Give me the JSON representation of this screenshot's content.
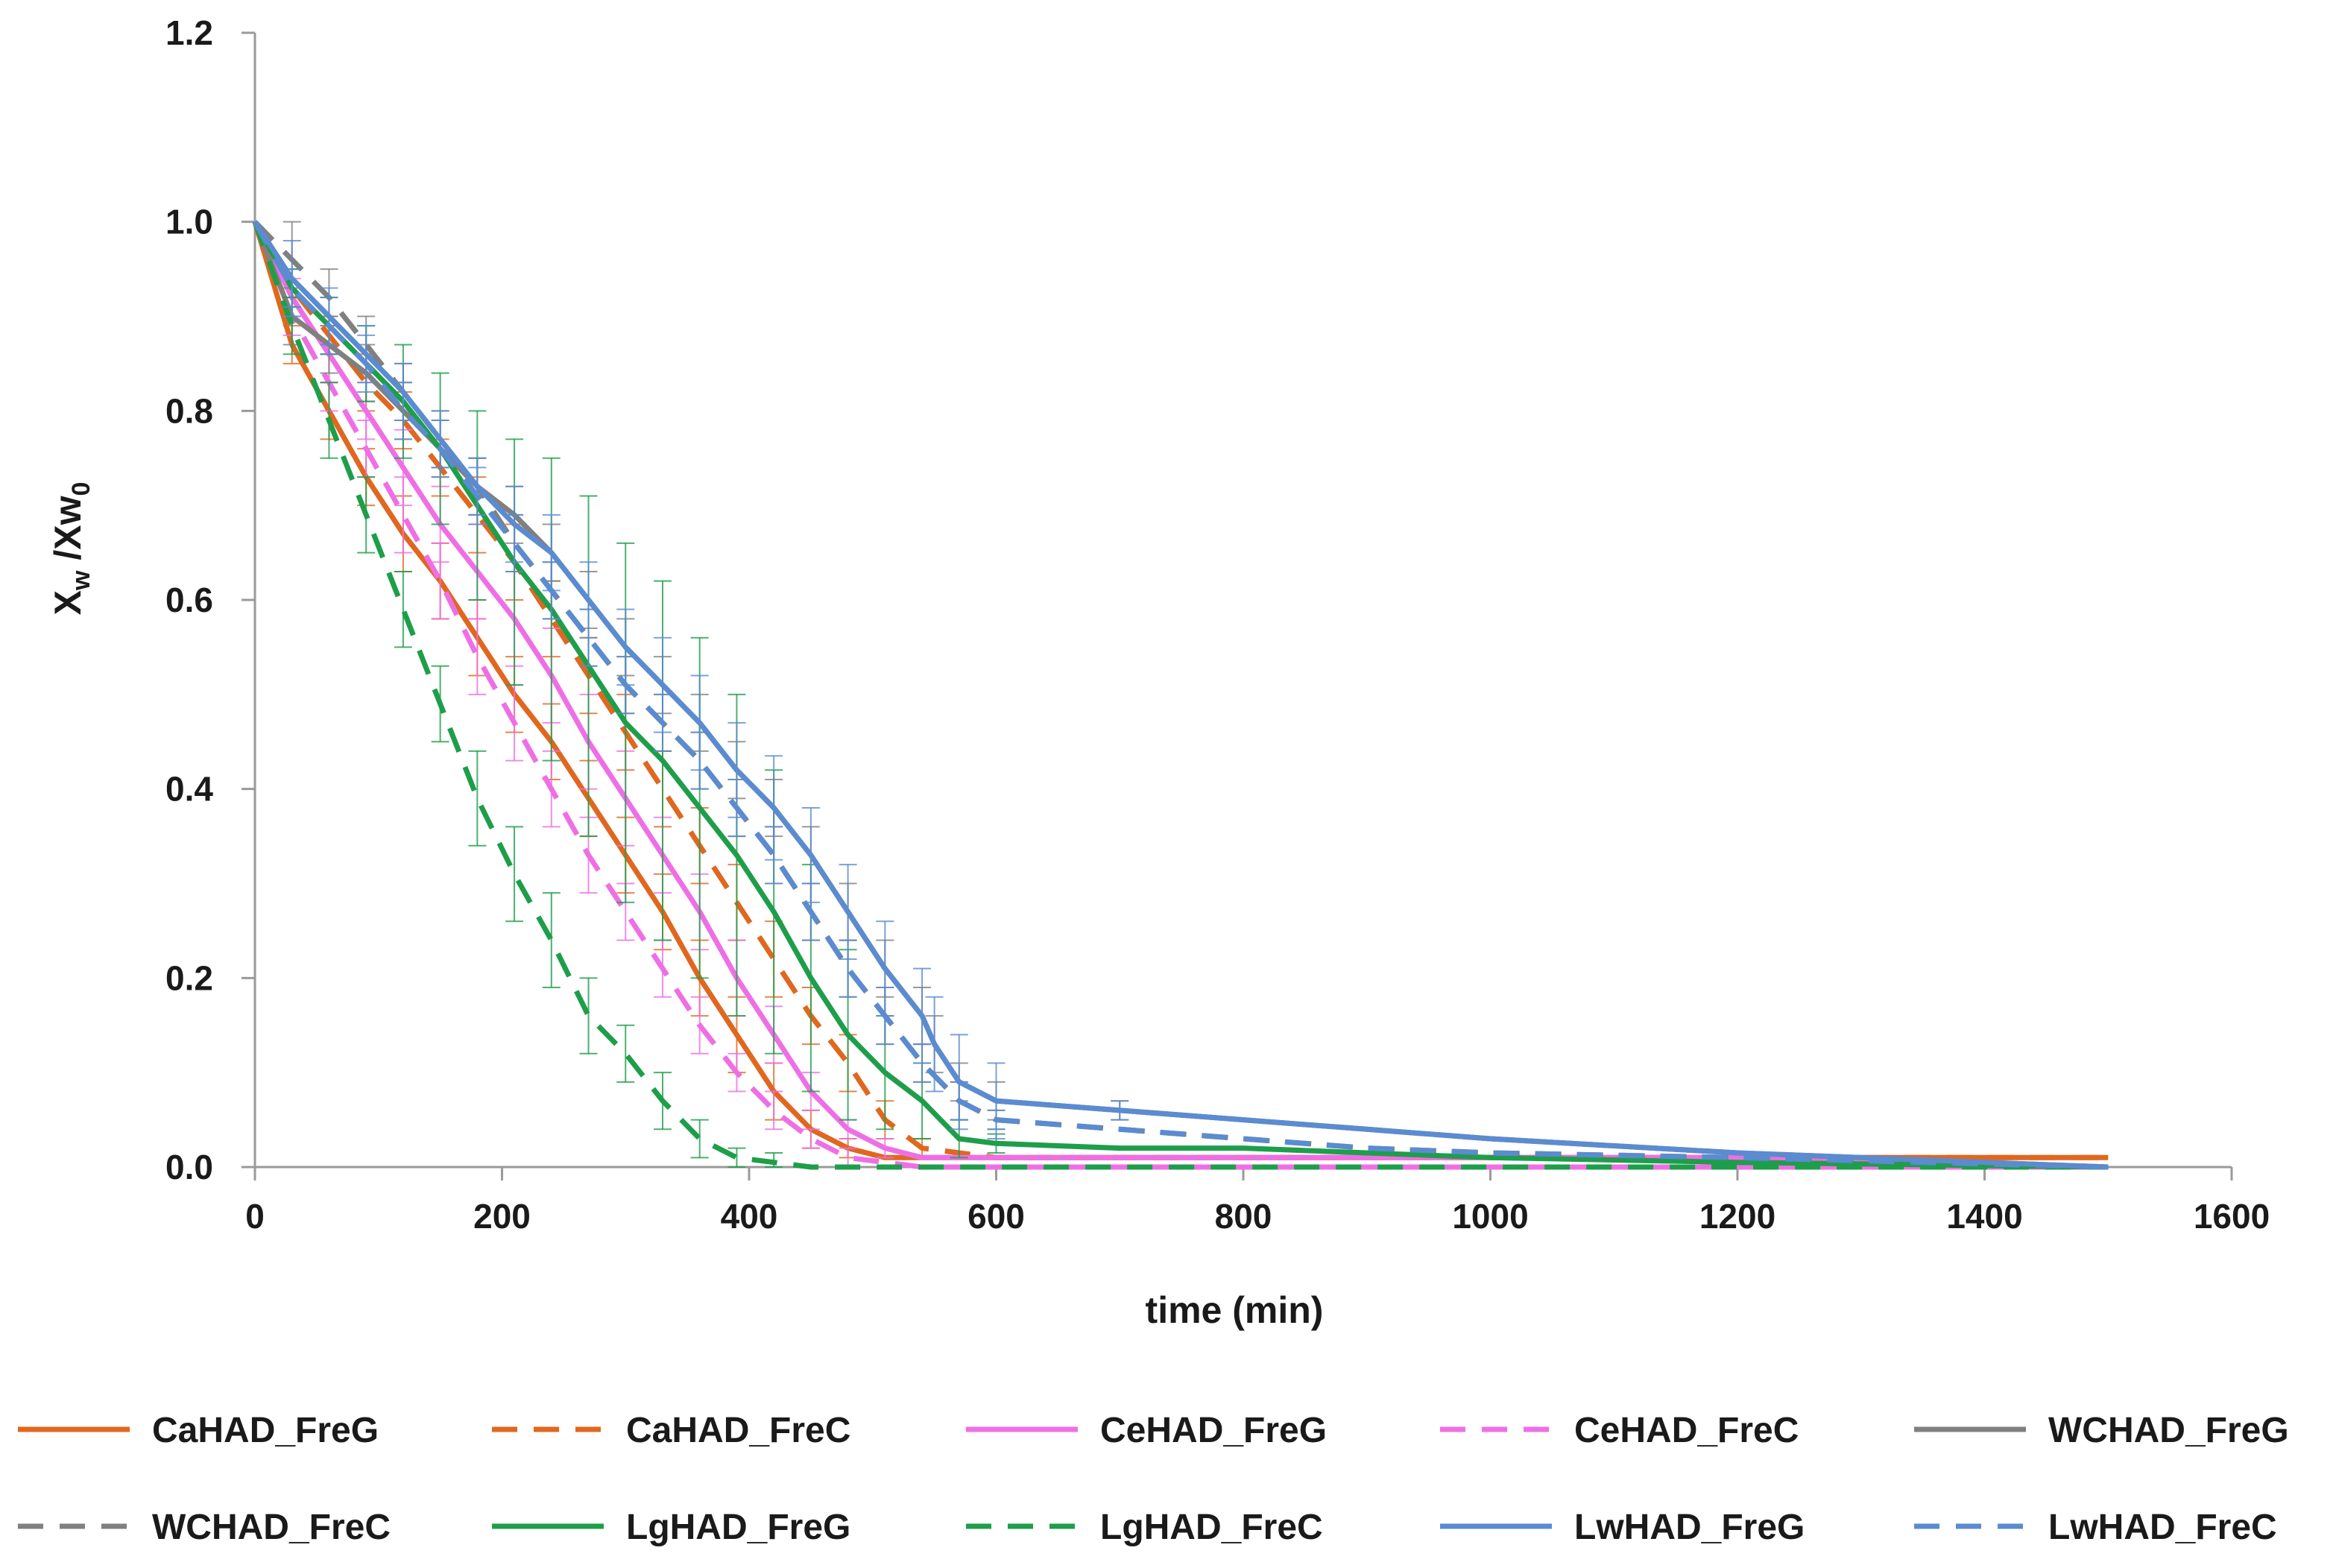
{
  "chart_data": {
    "type": "line",
    "xlabel": "time (min)",
    "ylabel_main": "X",
    "ylabel_sub1": "w",
    "ylabel_mid": " /Xw",
    "ylabel_sub2": "0",
    "xlim": [
      0,
      1600
    ],
    "ylim": [
      0,
      1.2
    ],
    "x_ticks": [
      0,
      200,
      400,
      600,
      800,
      1000,
      1200,
      1400,
      1600
    ],
    "x_tick_labels": [
      "0",
      "200",
      "400",
      "600",
      "800",
      "1000",
      "1200",
      "1400",
      "1600"
    ],
    "y_ticks": [
      0,
      0.2,
      0.4,
      0.6,
      0.8,
      1.0,
      1.2
    ],
    "y_tick_labels": [
      "0.0",
      "0.2",
      "0.4",
      "0.6",
      "0.8",
      "1.0",
      "1.2"
    ],
    "grid": false,
    "legend_position": "bottom",
    "series": [
      {
        "name": "CaHAD_FreG",
        "color": "#E0671F",
        "dash": "solid",
        "x": [
          0,
          30,
          60,
          90,
          120,
          150,
          180,
          210,
          240,
          270,
          300,
          330,
          360,
          390,
          420,
          450,
          480,
          510,
          540,
          600,
          700,
          800,
          900,
          1000,
          1200,
          1500
        ],
        "y": [
          1.0,
          0.87,
          0.8,
          0.73,
          0.67,
          0.62,
          0.56,
          0.5,
          0.45,
          0.39,
          0.33,
          0.27,
          0.2,
          0.14,
          0.08,
          0.04,
          0.02,
          0.01,
          0.01,
          0.01,
          0.01,
          0.01,
          0.01,
          0.01,
          0.01,
          0.01
        ],
        "err": [
          0,
          0.02,
          0.03,
          0.03,
          0.04,
          0.04,
          0.04,
          0.04,
          0.04,
          0.04,
          0.04,
          0.04,
          0.04,
          0.04,
          0.03,
          0.02,
          0.01,
          0,
          0,
          0,
          0,
          0,
          0,
          0,
          0,
          0
        ]
      },
      {
        "name": "CaHAD_FreC",
        "color": "#E0671F",
        "dash": "dashed",
        "x": [
          0,
          30,
          60,
          90,
          120,
          150,
          180,
          210,
          240,
          270,
          300,
          330,
          360,
          390,
          420,
          450,
          480,
          510,
          540,
          600,
          700,
          800,
          900,
          1000,
          1200,
          1500
        ],
        "y": [
          1.0,
          0.93,
          0.88,
          0.83,
          0.79,
          0.74,
          0.69,
          0.64,
          0.58,
          0.52,
          0.46,
          0.4,
          0.34,
          0.28,
          0.22,
          0.16,
          0.11,
          0.05,
          0.02,
          0.01,
          0.01,
          0.01,
          0.01,
          0.01,
          0.01,
          0.01
        ],
        "err": [
          0,
          0.02,
          0.02,
          0.03,
          0.03,
          0.03,
          0.04,
          0.04,
          0.04,
          0.04,
          0.04,
          0.04,
          0.04,
          0.04,
          0.04,
          0.03,
          0.03,
          0.02,
          0.01,
          0,
          0,
          0,
          0,
          0,
          0,
          0
        ]
      },
      {
        "name": "CeHAD_FreG",
        "color": "#EE6FE5",
        "dash": "solid",
        "x": [
          0,
          30,
          60,
          90,
          120,
          150,
          180,
          210,
          240,
          270,
          300,
          330,
          360,
          390,
          420,
          450,
          480,
          510,
          540,
          600,
          700,
          800,
          900,
          1000,
          1200,
          1500
        ],
        "y": [
          1.0,
          0.92,
          0.86,
          0.8,
          0.74,
          0.68,
          0.63,
          0.58,
          0.52,
          0.45,
          0.39,
          0.33,
          0.27,
          0.2,
          0.14,
          0.08,
          0.04,
          0.02,
          0.01,
          0.01,
          0.01,
          0.01,
          0.01,
          0.01,
          0.01,
          0.0
        ],
        "err": [
          0,
          0.02,
          0.03,
          0.03,
          0.04,
          0.04,
          0.05,
          0.05,
          0.05,
          0.05,
          0.05,
          0.04,
          0.04,
          0.04,
          0.03,
          0.02,
          0.01,
          0.01,
          0,
          0,
          0,
          0,
          0,
          0,
          0,
          0
        ]
      },
      {
        "name": "CeHAD_FreC",
        "color": "#EE6FE5",
        "dash": "dashed",
        "x": [
          0,
          30,
          60,
          90,
          120,
          150,
          180,
          210,
          240,
          270,
          300,
          330,
          360,
          390,
          420,
          450,
          480,
          510,
          540,
          600,
          700,
          800,
          900,
          1000,
          1200,
          1500
        ],
        "y": [
          1.0,
          0.9,
          0.83,
          0.76,
          0.69,
          0.62,
          0.54,
          0.47,
          0.4,
          0.33,
          0.27,
          0.21,
          0.15,
          0.1,
          0.06,
          0.03,
          0.01,
          0.005,
          0.0,
          0.0,
          0.0,
          0.0,
          0.0,
          0.0,
          0.0,
          0.0
        ],
        "err": [
          0,
          0.02,
          0.03,
          0.03,
          0.04,
          0.04,
          0.04,
          0.04,
          0.04,
          0.04,
          0.03,
          0.03,
          0.03,
          0.02,
          0.02,
          0.01,
          0.01,
          0,
          0,
          0,
          0,
          0,
          0,
          0,
          0,
          0
        ]
      },
      {
        "name": "WCHAD_FreG",
        "color": "#808080",
        "dash": "solid",
        "x": [
          0,
          30,
          60,
          90,
          120,
          150,
          180,
          210,
          240,
          270,
          300,
          330,
          360,
          390,
          420,
          450,
          480,
          510,
          540,
          550,
          570,
          600,
          700,
          800,
          900,
          1000,
          1200,
          1500
        ],
        "y": [
          1.0,
          0.9,
          0.87,
          0.84,
          0.8,
          0.76,
          0.72,
          0.69,
          0.65,
          0.6,
          0.55,
          0.51,
          0.47,
          0.42,
          0.38,
          0.33,
          0.27,
          0.21,
          0.16,
          0.13,
          0.09,
          0.07,
          0.06,
          0.05,
          0.04,
          0.03,
          0.015,
          0.0
        ],
        "err": [
          0,
          0.03,
          0.03,
          0.03,
          0.03,
          0.03,
          0.03,
          0.03,
          0.03,
          0.03,
          0.03,
          0.03,
          0.03,
          0.03,
          0.03,
          0.03,
          0.03,
          0.03,
          0.03,
          0.03,
          0.02,
          0.02,
          0.01,
          0,
          0,
          0,
          0,
          0
        ]
      },
      {
        "name": "WCHAD_FreC",
        "color": "#808080",
        "dash": "dashed",
        "x": [
          0,
          30,
          60,
          90,
          120,
          150,
          180,
          210,
          240,
          270,
          300,
          330,
          360,
          390,
          420,
          450,
          480,
          510,
          540,
          570,
          600,
          700,
          800,
          900,
          1000,
          1200,
          1500
        ],
        "y": [
          1.0,
          0.96,
          0.92,
          0.87,
          0.82,
          0.77,
          0.72,
          0.66,
          0.61,
          0.56,
          0.51,
          0.47,
          0.43,
          0.38,
          0.33,
          0.27,
          0.21,
          0.16,
          0.11,
          0.07,
          0.05,
          0.04,
          0.03,
          0.02,
          0.015,
          0.01,
          0.0
        ],
        "err": [
          0,
          0.04,
          0.03,
          0.03,
          0.03,
          0.03,
          0.03,
          0.03,
          0.03,
          0.03,
          0.03,
          0.03,
          0.03,
          0.03,
          0.03,
          0.03,
          0.03,
          0.03,
          0.02,
          0.02,
          0.01,
          0,
          0,
          0,
          0,
          0,
          0
        ]
      },
      {
        "name": "LgHAD_FreG",
        "color": "#1E9E4A",
        "dash": "solid",
        "x": [
          0,
          30,
          60,
          90,
          120,
          150,
          180,
          210,
          240,
          270,
          300,
          330,
          360,
          390,
          420,
          450,
          480,
          510,
          540,
          570,
          600,
          700,
          800,
          900,
          1000,
          1200,
          1500
        ],
        "y": [
          1.0,
          0.93,
          0.89,
          0.85,
          0.81,
          0.76,
          0.7,
          0.64,
          0.59,
          0.53,
          0.47,
          0.43,
          0.38,
          0.33,
          0.27,
          0.2,
          0.14,
          0.1,
          0.07,
          0.03,
          0.025,
          0.02,
          0.02,
          0.015,
          0.01,
          0.005,
          0.0
        ],
        "err": [
          0,
          0.02,
          0.03,
          0.04,
          0.06,
          0.08,
          0.1,
          0.13,
          0.16,
          0.18,
          0.19,
          0.19,
          0.18,
          0.17,
          0.15,
          0.12,
          0.09,
          0.06,
          0.04,
          0.02,
          0.01,
          0,
          0,
          0,
          0,
          0,
          0
        ]
      },
      {
        "name": "LgHAD_FreC",
        "color": "#1E9E4A",
        "dash": "dashed",
        "x": [
          0,
          30,
          60,
          90,
          120,
          150,
          180,
          210,
          240,
          270,
          300,
          330,
          360,
          390,
          420,
          450,
          480,
          510,
          540,
          600,
          700,
          800,
          900,
          1000,
          1200,
          1500
        ],
        "y": [
          1.0,
          0.89,
          0.79,
          0.69,
          0.59,
          0.49,
          0.39,
          0.31,
          0.24,
          0.16,
          0.12,
          0.07,
          0.03,
          0.01,
          0.005,
          0.0,
          0.0,
          0.0,
          0.0,
          0.0,
          0.0,
          0.0,
          0.0,
          0.0,
          0.0,
          0.0
        ],
        "err": [
          0,
          0.03,
          0.04,
          0.04,
          0.04,
          0.04,
          0.05,
          0.05,
          0.05,
          0.04,
          0.03,
          0.03,
          0.02,
          0.01,
          0.01,
          0,
          0,
          0,
          0,
          0,
          0,
          0,
          0,
          0,
          0,
          0
        ]
      },
      {
        "name": "LwHAD_FreG",
        "color": "#5B8BD0",
        "dash": "solid",
        "x": [
          0,
          30,
          60,
          90,
          120,
          150,
          180,
          210,
          240,
          270,
          300,
          330,
          360,
          390,
          420,
          450,
          480,
          510,
          540,
          550,
          570,
          600,
          700,
          800,
          900,
          1000,
          1200,
          1500
        ],
        "y": [
          1.0,
          0.94,
          0.9,
          0.86,
          0.82,
          0.77,
          0.72,
          0.68,
          0.65,
          0.6,
          0.55,
          0.51,
          0.47,
          0.42,
          0.38,
          0.33,
          0.27,
          0.21,
          0.16,
          0.13,
          0.09,
          0.07,
          0.06,
          0.05,
          0.04,
          0.03,
          0.015,
          0.0
        ],
        "err": [
          0,
          0.04,
          0.03,
          0.03,
          0.03,
          0.03,
          0.03,
          0.04,
          0.04,
          0.04,
          0.04,
          0.05,
          0.05,
          0.05,
          0.055,
          0.05,
          0.05,
          0.05,
          0.05,
          0.05,
          0.05,
          0.04,
          0.01,
          0,
          0,
          0,
          0,
          0
        ]
      },
      {
        "name": "LwHAD_FreC",
        "color": "#5B8BD0",
        "dash": "dashed",
        "x": [
          0,
          30,
          60,
          90,
          120,
          150,
          180,
          210,
          240,
          270,
          300,
          330,
          360,
          390,
          420,
          450,
          480,
          510,
          540,
          570,
          600,
          700,
          800,
          900,
          1000,
          1200,
          1500
        ],
        "y": [
          1.0,
          0.93,
          0.89,
          0.85,
          0.8,
          0.76,
          0.71,
          0.66,
          0.61,
          0.56,
          0.51,
          0.47,
          0.43,
          0.38,
          0.33,
          0.27,
          0.21,
          0.16,
          0.11,
          0.07,
          0.05,
          0.04,
          0.03,
          0.02,
          0.015,
          0.01,
          0.0
        ],
        "err": [
          0,
          0.02,
          0.03,
          0.03,
          0.03,
          0.03,
          0.03,
          0.03,
          0.03,
          0.03,
          0.03,
          0.03,
          0.03,
          0.03,
          0.03,
          0.03,
          0.03,
          0.03,
          0.02,
          0.02,
          0.01,
          0,
          0,
          0,
          0,
          0,
          0
        ]
      }
    ],
    "legend": [
      {
        "label": "CaHAD_FreG",
        "color": "#E0671F",
        "dash": "solid"
      },
      {
        "label": "CaHAD_FreC",
        "color": "#E0671F",
        "dash": "dashed"
      },
      {
        "label": "CeHAD_FreG",
        "color": "#EE6FE5",
        "dash": "solid"
      },
      {
        "label": "CeHAD_FreC",
        "color": "#EE6FE5",
        "dash": "dashed"
      },
      {
        "label": "WCHAD_FreG",
        "color": "#808080",
        "dash": "solid"
      },
      {
        "label": "WCHAD_FreC",
        "color": "#808080",
        "dash": "dashed"
      },
      {
        "label": "LgHAD_FreG",
        "color": "#1E9E4A",
        "dash": "solid"
      },
      {
        "label": "LgHAD_FreC",
        "color": "#1E9E4A",
        "dash": "dashed"
      },
      {
        "label": "LwHAD_FreG",
        "color": "#5B8BD0",
        "dash": "solid"
      },
      {
        "label": "LwHAD_FreC",
        "color": "#5B8BD0",
        "dash": "dashed"
      }
    ]
  }
}
